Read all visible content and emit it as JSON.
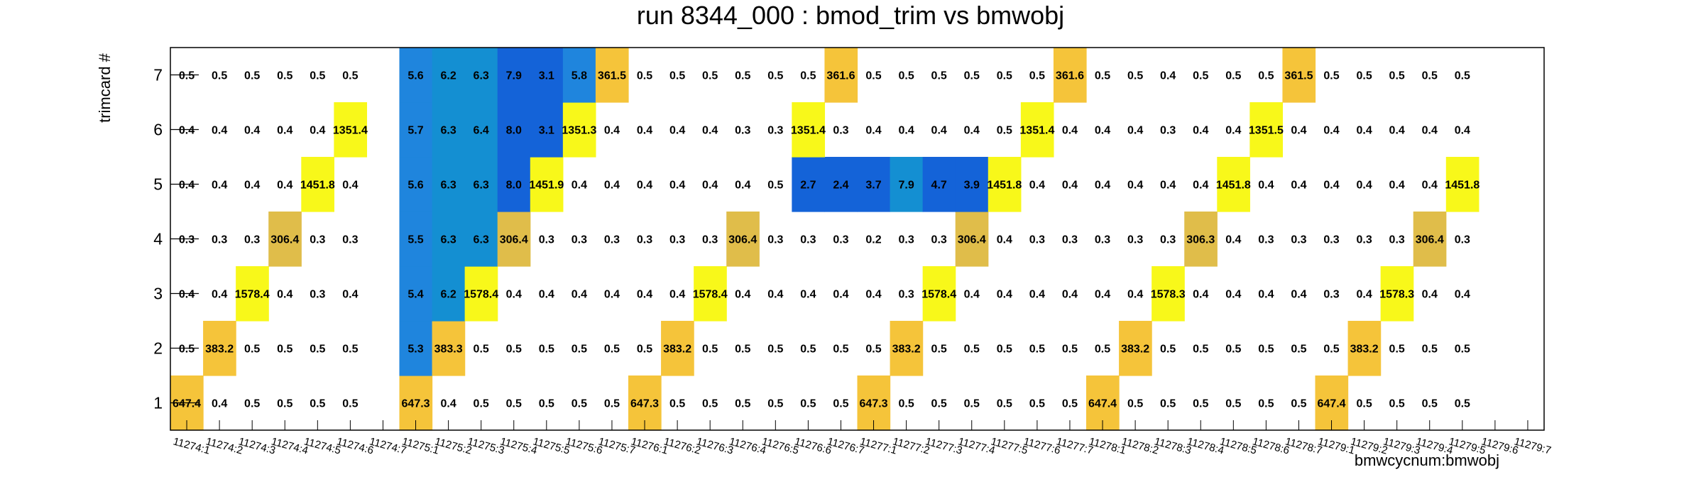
{
  "chart_data": {
    "type": "heatmap",
    "title": "run 8344_000 : bmod_trim vs bmwobj",
    "xlabel": "bmwcycnum:bmwobj",
    "ylabel": "trimcard #",
    "x_categories": [
      "11274:1",
      "11274:2",
      "11274:3",
      "11274:4",
      "11274:5",
      "11274:6",
      "11274:7",
      "11275:1",
      "11275:2",
      "11275:3",
      "11275:4",
      "11275:5",
      "11275:6",
      "11275:7",
      "11276:1",
      "11276:2",
      "11276:3",
      "11276:4",
      "11276:5",
      "11276:6",
      "11276:7",
      "11277:1",
      "11277:2",
      "11277:3",
      "11277:4",
      "11277:5",
      "11277:6",
      "11277:7",
      "11278:1",
      "11278:2",
      "11278:3",
      "11278:4",
      "11278:5",
      "11278:6",
      "11278:7",
      "11279:1",
      "11279:2",
      "11279:3",
      "11279:4",
      "11279:5",
      "11279:6",
      "11279:7"
    ],
    "y_categories": [
      "1",
      "2",
      "3",
      "4",
      "5",
      "6",
      "7"
    ],
    "cells": [
      [
        "647.4",
        "0.4",
        "0.5",
        "0.5",
        "0.5",
        "0.5",
        "",
        "647.3",
        "0.4",
        "0.5",
        "0.5",
        "0.5",
        "0.5",
        "0.5",
        "647.3",
        "0.5",
        "0.5",
        "0.5",
        "0.5",
        "0.5",
        "0.5",
        "647.3",
        "0.5",
        "0.5",
        "0.5",
        "0.5",
        "0.5",
        "0.5",
        "647.4",
        "0.5",
        "0.5",
        "0.5",
        "0.5",
        "0.5",
        "0.5",
        "647.4",
        "0.5",
        "0.5",
        "0.5",
        "0.5",
        "",
        ""
      ],
      [
        "0.5",
        "383.2",
        "0.5",
        "0.5",
        "0.5",
        "0.5",
        "",
        "5.3",
        "383.3",
        "0.5",
        "0.5",
        "0.5",
        "0.5",
        "0.5",
        "0.5",
        "383.2",
        "0.5",
        "0.5",
        "0.5",
        "0.5",
        "0.5",
        "0.5",
        "383.2",
        "0.5",
        "0.5",
        "0.5",
        "0.5",
        "0.5",
        "0.5",
        "383.2",
        "0.5",
        "0.5",
        "0.5",
        "0.5",
        "0.5",
        "0.5",
        "383.2",
        "0.5",
        "0.5",
        "0.5",
        "",
        ""
      ],
      [
        "0.4",
        "0.4",
        "1578.4",
        "0.4",
        "0.3",
        "0.4",
        "",
        "5.4",
        "6.2",
        "1578.4",
        "0.4",
        "0.4",
        "0.4",
        "0.4",
        "0.4",
        "0.4",
        "1578.4",
        "0.4",
        "0.4",
        "0.4",
        "0.4",
        "0.4",
        "0.3",
        "1578.4",
        "0.4",
        "0.4",
        "0.4",
        "0.4",
        "0.4",
        "0.4",
        "1578.3",
        "0.4",
        "0.4",
        "0.4",
        "0.4",
        "0.3",
        "0.4",
        "1578.3",
        "0.4",
        "0.4",
        "",
        ""
      ],
      [
        "0.3",
        "0.3",
        "0.3",
        "306.4",
        "0.3",
        "0.3",
        "",
        "5.5",
        "6.3",
        "6.3",
        "306.4",
        "0.3",
        "0.3",
        "0.3",
        "0.3",
        "0.3",
        "0.3",
        "306.4",
        "0.3",
        "0.3",
        "0.3",
        "0.2",
        "0.3",
        "0.3",
        "306.4",
        "0.4",
        "0.3",
        "0.3",
        "0.3",
        "0.3",
        "0.3",
        "306.3",
        "0.4",
        "0.3",
        "0.3",
        "0.3",
        "0.3",
        "0.3",
        "306.4",
        "0.3",
        "",
        ""
      ],
      [
        "0.4",
        "0.4",
        "0.4",
        "0.4",
        "1451.8",
        "0.4",
        "",
        "5.6",
        "6.3",
        "6.3",
        "8.0",
        "1451.9",
        "0.4",
        "0.4",
        "0.4",
        "0.4",
        "0.4",
        "0.4",
        "0.5",
        "2.7",
        "2.4",
        "3.7",
        "7.9",
        "4.7",
        "3.9",
        "1451.8",
        "0.4",
        "0.4",
        "0.4",
        "0.4",
        "0.4",
        "0.4",
        "1451.8",
        "0.4",
        "0.4",
        "0.4",
        "0.4",
        "0.4",
        "0.4",
        "1451.8",
        "",
        ""
      ],
      [
        "0.4",
        "0.4",
        "0.4",
        "0.4",
        "0.4",
        "1351.4",
        "",
        "5.7",
        "6.3",
        "6.4",
        "8.0",
        "3.1",
        "1351.3",
        "0.4",
        "0.4",
        "0.4",
        "0.4",
        "0.3",
        "0.3",
        "1351.4",
        "0.3",
        "0.4",
        "0.4",
        "0.4",
        "0.4",
        "0.5",
        "1351.4",
        "0.4",
        "0.4",
        "0.4",
        "0.3",
        "0.4",
        "0.4",
        "1351.5",
        "0.4",
        "0.4",
        "0.4",
        "0.4",
        "0.4",
        "0.4",
        "",
        ""
      ],
      [
        "0.5",
        "0.5",
        "0.5",
        "0.5",
        "0.5",
        "0.5",
        "",
        "5.6",
        "6.2",
        "6.3",
        "7.9",
        "3.1",
        "5.8",
        "361.5",
        "0.5",
        "0.5",
        "0.5",
        "0.5",
        "0.5",
        "0.5",
        "361.6",
        "0.5",
        "0.5",
        "0.5",
        "0.5",
        "0.5",
        "0.5",
        "361.6",
        "0.5",
        "0.5",
        "0.4",
        "0.5",
        "0.5",
        "0.5",
        "361.5",
        "0.5",
        "0.5",
        "0.5",
        "0.5",
        "0.5",
        "",
        ""
      ]
    ],
    "colors": {
      "pale_blue": "#3399ee",
      "light_blue": "#1f85dd",
      "mid_blue": "#1a78d6",
      "deep_blue": "#1463d8",
      "teal": "#148fd2",
      "yellow": "#f8f81a",
      "amber": "#f5c43a",
      "tan": "#e0bd4a",
      "axis": "#000000"
    },
    "grid": false,
    "legend": "none"
  }
}
